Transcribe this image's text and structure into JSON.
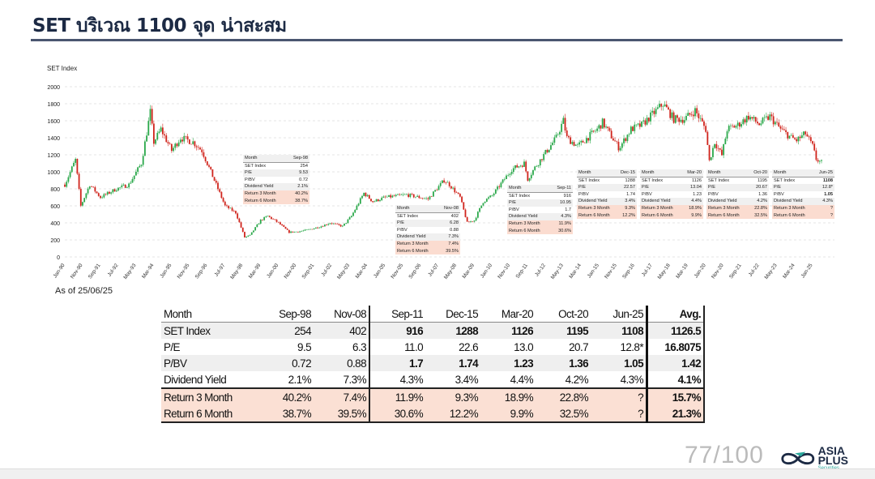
{
  "title": "SET บริเวณ 1100 จุด น่าสะสม",
  "as_of": "As of 25/06/25",
  "page_number": "77/100",
  "logo": {
    "name": "ASIA PLUS",
    "sub": "Securities"
  },
  "chart_data": {
    "type": "candlestick",
    "ylabel": "SET Index",
    "ylim": [
      0,
      2000
    ],
    "yticks": [
      "0",
      "200",
      "400",
      "600",
      "800",
      "1000",
      "1200",
      "1400",
      "1600",
      "1800",
      "2000"
    ],
    "xticks": [
      "Jan-90",
      "Nov-90",
      "Sep-91",
      "Jul-92",
      "May-93",
      "Mar-94",
      "Jan-95",
      "Nov-95",
      "Sep-96",
      "Jul-97",
      "May-98",
      "Mar-99",
      "Jan-00",
      "Nov-00",
      "Sep-01",
      "Jul-02",
      "May-03",
      "Mar-04",
      "Jan-05",
      "Nov-05",
      "Sep-06",
      "Jul-07",
      "May-08",
      "Mar-09",
      "Jan-10",
      "Nov-10",
      "Sep-11",
      "Jul-12",
      "May-13",
      "Mar-14",
      "Jan-15",
      "Nov-15",
      "Sep-16",
      "Jul-17",
      "May-18",
      "Mar-19",
      "Jan-20",
      "Nov-20",
      "Sep-21",
      "Jul-22",
      "May-23",
      "Mar-24",
      "Jan-25"
    ],
    "grid": "horizontal-dashed",
    "approx_path": [
      [
        "1990-01",
        850
      ],
      [
        "1990-07",
        1140
      ],
      [
        "1990-10",
        600
      ],
      [
        "1991-03",
        850
      ],
      [
        "1991-09",
        700
      ],
      [
        "1992-06",
        800
      ],
      [
        "1993-01",
        850
      ],
      [
        "1993-08",
        1100
      ],
      [
        "1994-01",
        1700
      ],
      [
        "1994-03",
        1350
      ],
      [
        "1994-07",
        1500
      ],
      [
        "1995-01",
        1250
      ],
      [
        "1995-06",
        1400
      ],
      [
        "1996-01",
        1350
      ],
      [
        "1996-06",
        1250
      ],
      [
        "1997-01",
        900
      ],
      [
        "1997-07",
        600
      ],
      [
        "1998-01",
        520
      ],
      [
        "1998-06",
        230
      ],
      [
        "1998-09",
        254
      ],
      [
        "1999-03",
        430
      ],
      [
        "1999-07",
        480
      ],
      [
        "2000-01",
        400
      ],
      [
        "2000-07",
        290
      ],
      [
        "2001-01",
        300
      ],
      [
        "2001-06",
        320
      ],
      [
        "2002-01",
        360
      ],
      [
        "2002-06",
        400
      ],
      [
        "2003-01",
        360
      ],
      [
        "2003-06",
        480
      ],
      [
        "2004-01",
        750
      ],
      [
        "2004-06",
        650
      ],
      [
        "2005-01",
        700
      ],
      [
        "2006-01",
        730
      ],
      [
        "2007-01",
        680
      ],
      [
        "2007-10",
        900
      ],
      [
        "2008-01",
        850
      ],
      [
        "2008-07",
        700
      ],
      [
        "2008-11",
        402
      ],
      [
        "2009-03",
        430
      ],
      [
        "2009-08",
        650
      ],
      [
        "2010-01",
        720
      ],
      [
        "2010-12",
        1030
      ],
      [
        "2011-07",
        1100
      ],
      [
        "2011-09",
        916
      ],
      [
        "2012-01",
        1050
      ],
      [
        "2013-01",
        1400
      ],
      [
        "2013-05",
        1600
      ],
      [
        "2013-07",
        1400
      ],
      [
        "2014-01",
        1300
      ],
      [
        "2014-12",
        1500
      ],
      [
        "2015-03",
        1580
      ],
      [
        "2015-12",
        1288
      ],
      [
        "2016-01",
        1300
      ],
      [
        "2016-07",
        1500
      ],
      [
        "2017-01",
        1550
      ],
      [
        "2018-01",
        1800
      ],
      [
        "2018-07",
        1620
      ],
      [
        "2019-01",
        1620
      ],
      [
        "2019-07",
        1720
      ],
      [
        "2020-01",
        1500
      ],
      [
        "2020-03",
        1126
      ],
      [
        "2020-06",
        1350
      ],
      [
        "2020-10",
        1195
      ],
      [
        "2021-01",
        1500
      ],
      [
        "2021-07",
        1550
      ],
      [
        "2022-01",
        1650
      ],
      [
        "2022-07",
        1560
      ],
      [
        "2023-01",
        1650
      ],
      [
        "2023-07",
        1500
      ],
      [
        "2024-01",
        1400
      ],
      [
        "2024-04",
        1370
      ],
      [
        "2024-09",
        1450
      ],
      [
        "2025-01",
        1300
      ],
      [
        "2025-03",
        1150
      ],
      [
        "2025-06",
        1108
      ]
    ]
  },
  "mini_tables": [
    {
      "rows": [
        [
          "Month",
          "Sep-98"
        ],
        [
          "SET Index",
          "254"
        ],
        [
          "P/E",
          "9.53"
        ],
        [
          "P/BV",
          "0.72"
        ],
        [
          "Dividend Yield",
          "2.1%"
        ],
        [
          "Return 3 Month",
          "40.2%"
        ],
        [
          "Return 6 Month",
          "38.7%"
        ]
      ]
    },
    {
      "rows": [
        [
          "Month",
          "Nov-08"
        ],
        [
          "SET Index",
          "402"
        ],
        [
          "P/E",
          "6.28"
        ],
        [
          "P/BV",
          "0.88"
        ],
        [
          "Dividend Yield",
          "7.3%"
        ],
        [
          "Return 3 Month",
          "7.4%"
        ],
        [
          "Return 6 Month",
          "39.5%"
        ]
      ]
    },
    {
      "rows": [
        [
          "Month",
          "Sep-11"
        ],
        [
          "SET Index",
          "916"
        ],
        [
          "P/E",
          "10.95"
        ],
        [
          "P/BV",
          "1.7"
        ],
        [
          "Dividend Yield",
          "4.3%"
        ],
        [
          "Return 3 Month",
          "11.9%"
        ],
        [
          "Return 6 Month",
          "30.6%"
        ]
      ]
    },
    {
      "rows": [
        [
          "Month",
          "Dec-15"
        ],
        [
          "SET Index",
          "1288"
        ],
        [
          "P/E",
          "22.57"
        ],
        [
          "P/BV",
          "1.74"
        ],
        [
          "Dividend Yield",
          "3.4%"
        ],
        [
          "Return 3 Month",
          "9.3%"
        ],
        [
          "Return 6 Month",
          "12.2%"
        ]
      ]
    },
    {
      "rows": [
        [
          "Month",
          "Mar-20"
        ],
        [
          "SET Index",
          "1126"
        ],
        [
          "P/E",
          "13.04"
        ],
        [
          "P/BV",
          "1.23"
        ],
        [
          "Dividend Yield",
          "4.4%"
        ],
        [
          "Return 3 Month",
          "18.9%"
        ],
        [
          "Return 6 Month",
          "9.9%"
        ]
      ]
    },
    {
      "rows": [
        [
          "Month",
          "Oct-20"
        ],
        [
          "SET Index",
          "1195"
        ],
        [
          "P/E",
          "20.67"
        ],
        [
          "P/BV",
          "1.36"
        ],
        [
          "Dividend Yield",
          "4.2%"
        ],
        [
          "Return 3 Month",
          "22.8%"
        ],
        [
          "Return 6 Month",
          "32.5%"
        ]
      ]
    },
    {
      "rows": [
        [
          "Month",
          "Jun-25"
        ],
        [
          "SET Index",
          "1108"
        ],
        [
          "P/E",
          "12.8*"
        ],
        [
          "P/BV",
          "1.05"
        ],
        [
          "Dividend Yield",
          "4.3%"
        ],
        [
          "Return 3 Month",
          "?"
        ],
        [
          "Return 6 Month",
          "?"
        ]
      ]
    }
  ],
  "table": {
    "header": [
      "Month",
      "Sep-98",
      "Nov-08",
      "Sep-11",
      "Dec-15",
      "Mar-20",
      "Oct-20",
      "Jun-25",
      "Avg."
    ],
    "rows": [
      [
        "SET Index",
        "254",
        "402",
        "916",
        "1288",
        "1126",
        "1195",
        "1108",
        "1126.5"
      ],
      [
        "P/E",
        "9.5",
        "6.3",
        "11.0",
        "22.6",
        "13.0",
        "20.7",
        "12.8*",
        "16.8075"
      ],
      [
        "P/BV",
        "0.72",
        "0.88",
        "1.7",
        "1.74",
        "1.23",
        "1.36",
        "1.05",
        "1.42"
      ],
      [
        "Dividend Yield",
        "2.1%",
        "7.3%",
        "4.3%",
        "3.4%",
        "4.4%",
        "4.2%",
        "4.3%",
        "4.1%"
      ],
      [
        "Return 3 Month",
        "40.2%",
        "7.4%",
        "11.9%",
        "9.3%",
        "18.9%",
        "22.8%",
        "?",
        "15.7%"
      ],
      [
        "Return 6 Month",
        "38.7%",
        "39.5%",
        "30.6%",
        "12.2%",
        "9.9%",
        "32.5%",
        "?",
        "21.3%"
      ]
    ]
  },
  "colors": {
    "up": "#2aa84a",
    "down": "#d0241c",
    "title": "#1c2a44",
    "return_bg": "#fbe0d4"
  }
}
